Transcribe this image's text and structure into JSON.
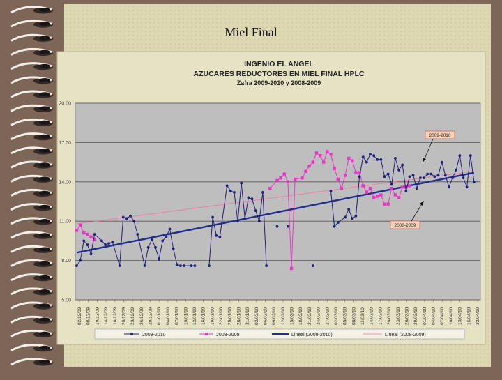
{
  "slide": {
    "title": "Miel Final"
  },
  "chart_data": {
    "type": "line",
    "title": "INGENIO EL ANGEL",
    "subtitle": "AZUCARES REDUCTORES EN MIEL FINAL HPLC",
    "subtitle2": "Zafra 2009-2010  y  2008-2009",
    "xlabel": "",
    "ylabel": "",
    "ylim": [
      5,
      20
    ],
    "yticks": [
      "20.00",
      "17.00",
      "14.00",
      "11.00",
      "8.00",
      "5.00"
    ],
    "xlim": [
      0,
      112
    ],
    "grid": true,
    "legend_position": "bottom",
    "colors": {
      "s2009": "#1f1f7a",
      "s2008": "#ee33cc",
      "trend2009": "#1f2f8a",
      "trend2008": "#f07aa0",
      "plot_bg": "#bebebe"
    },
    "x_tick_labels": [
      "02/12/09",
      "08/12/09",
      "10/12/09",
      "14/12/09",
      "16/12/09",
      "20/12/09",
      "23/12/09",
      "26/12/09",
      "29/12/09",
      "01/01/10",
      "04/01/10",
      "07/01/10",
      "10/01/10",
      "13/01/10",
      "16/01/10",
      "19/01/10",
      "22/01/10",
      "25/01/10",
      "28/01/10",
      "31/01/10",
      "03/02/10",
      "06/02/10",
      "09/02/10",
      "12/02/10",
      "15/02/10",
      "18/02/10",
      "21/02/10",
      "24/02/10",
      "27/02/10",
      "02/03/10",
      "05/03/10",
      "08/03/10",
      "11/03/10",
      "14/03/10",
      "17/03/10",
      "20/03/10",
      "23/03/10",
      "26/03/10",
      "29/03/10",
      "01/04/10",
      "04/04/10",
      "07/04/10",
      "10/04/10",
      "13/04/10",
      "16/04/10",
      "22/04/10"
    ],
    "series": [
      {
        "name": "2009-2010",
        "x": [
          0,
          1,
          2,
          3,
          4,
          5,
          7,
          8,
          9,
          10,
          12,
          13,
          14,
          15,
          16,
          17,
          19,
          20,
          21,
          22,
          23,
          24,
          25,
          26,
          27,
          28,
          29,
          30,
          32,
          33,
          37,
          38,
          39,
          40,
          42,
          43,
          44,
          45,
          46,
          47,
          48,
          49,
          50,
          51,
          52,
          53,
          56,
          59,
          66,
          71,
          72,
          73,
          75,
          76,
          77,
          78,
          79,
          80,
          81,
          82,
          83,
          84,
          85,
          86,
          87,
          88,
          89,
          90,
          91,
          92,
          93,
          94,
          95,
          96,
          97,
          98,
          99,
          100,
          101,
          102,
          103,
          104,
          105,
          106,
          107,
          108,
          109,
          110,
          111
        ],
        "y": [
          7.6,
          8.0,
          9.5,
          9.2,
          8.5,
          10.0,
          9.5,
          9.2,
          9.3,
          9.4,
          7.6,
          11.3,
          11.2,
          11.4,
          11.0,
          10.0,
          7.6,
          9.0,
          9.6,
          9.0,
          8.1,
          9.5,
          9.8,
          10.4,
          8.9,
          7.7,
          7.6,
          7.6,
          7.6,
          7.6,
          7.6,
          11.3,
          9.9,
          9.8,
          13.7,
          13.3,
          13.2,
          11.0,
          13.9,
          11.2,
          12.8,
          12.7,
          11.8,
          11.0,
          13.2,
          7.6,
          10.6,
          10.6,
          7.6,
          13.3,
          10.6,
          10.9,
          11.3,
          11.9,
          11.2,
          11.4,
          14.4,
          15.9,
          15.5,
          16.1,
          16.0,
          15.7,
          15.7,
          14.4,
          14.6,
          13.8,
          15.8,
          14.9,
          15.3,
          13.3,
          14.4,
          14.5,
          13.5,
          14.3,
          14.3,
          14.6,
          14.6,
          14.4,
          14.5,
          15.5,
          14.5,
          13.6,
          14.3,
          14.9,
          16.0,
          14.3,
          13.6,
          16.0,
          14.0
        ]
      },
      {
        "name": "2008-2009",
        "x": [
          0,
          1,
          2,
          3,
          4,
          5,
          54,
          56,
          57,
          58,
          59,
          60,
          61,
          63,
          64,
          65,
          66,
          67,
          68,
          69,
          70,
          71,
          72,
          73,
          74,
          75,
          76,
          77,
          78,
          79,
          80,
          81,
          82,
          83,
          84,
          85,
          86,
          87,
          88,
          89,
          90,
          91,
          92,
          93
        ],
        "y": [
          10.3,
          10.7,
          10.1,
          10.0,
          9.8,
          9.6,
          13.5,
          14.1,
          14.3,
          14.6,
          14.0,
          7.4,
          14.2,
          14.3,
          14.8,
          15.2,
          15.5,
          16.2,
          16.0,
          15.5,
          16.3,
          16.1,
          15.0,
          14.2,
          13.5,
          14.5,
          15.8,
          15.6,
          14.7,
          14.7,
          13.7,
          13.2,
          13.5,
          12.8,
          12.9,
          13.0,
          12.3,
          12.3,
          13.5,
          13.0,
          12.8,
          13.6,
          13.6,
          13.7
        ]
      }
    ],
    "trendlines": [
      {
        "name": "Lineal (2009-2010)",
        "start": [
          0,
          8.6
        ],
        "end": [
          111,
          14.7
        ]
      },
      {
        "name": "Lineal (2008-2009)",
        "start": [
          0,
          10.8
        ],
        "end": [
          111,
          14.8
        ]
      }
    ],
    "legend": [
      "2009-2010",
      "2008-2009",
      "Lineal (2009-2010)",
      "Lineal (2008-2009)"
    ],
    "annotations": [
      "2009-2010",
      "2008-2009"
    ]
  }
}
